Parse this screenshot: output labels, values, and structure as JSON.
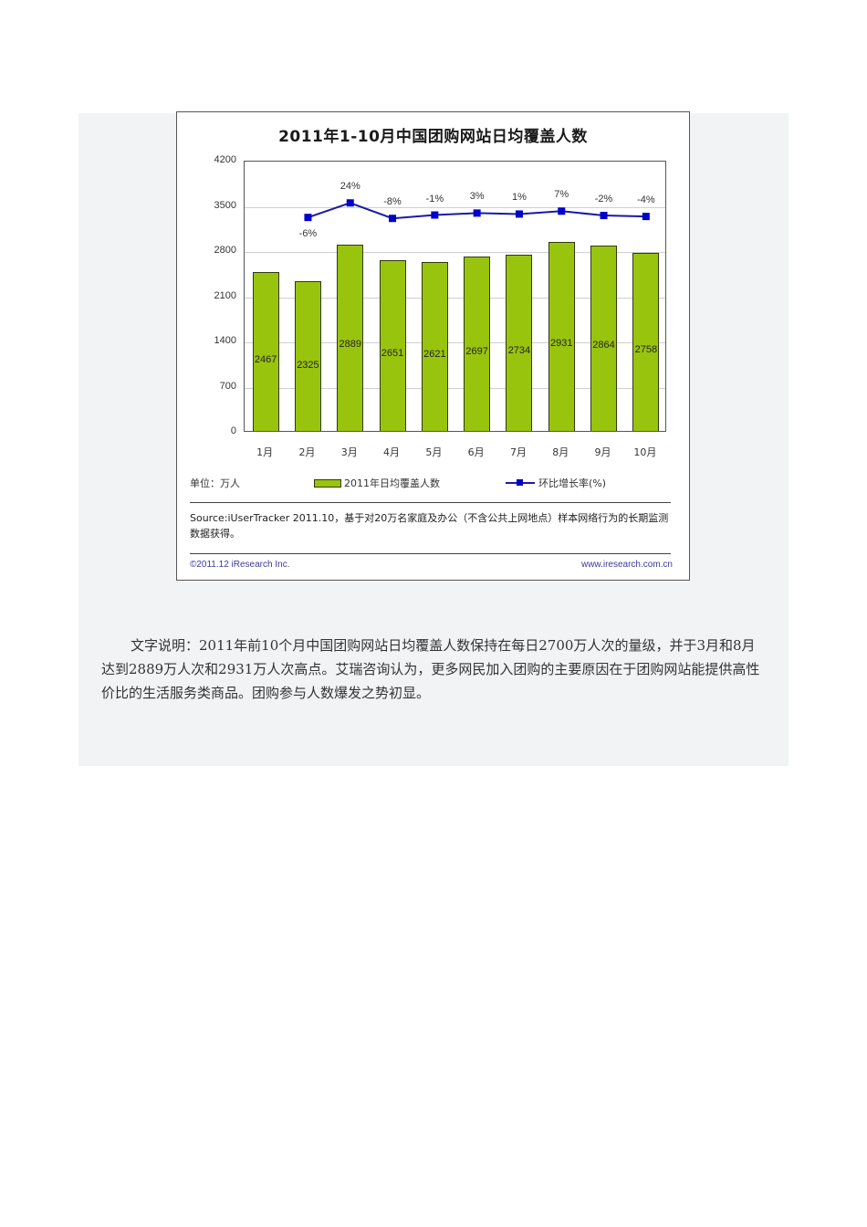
{
  "figure": {
    "title": "2011年1-10月中国团购网站日均覆盖人数",
    "unit_label": "单位：万人",
    "legend": {
      "bar_series": "2011年日均覆盖人数",
      "line_series": "环比增长率(%)"
    },
    "source_note": "Source:iUserTracker 2011.10，基于对20万名家庭及办公（不含公共上网地点）样本网络行为的长期监测数据获得。",
    "copyright": "©2011.12 iResearch Inc.",
    "website": "www.iresearch.com.cn",
    "colors": {
      "bar": "#99c40e",
      "bar_border": "#2f3a0a",
      "line": "#1a1aa6",
      "marker": "#0000cc",
      "panel_bg": "#f2f3f5"
    }
  },
  "chart_data": {
    "type": "bar",
    "title": "2011年1-10月中国团购网站日均覆盖人数",
    "xlabel": "",
    "ylabel": "万人",
    "ylim": [
      0,
      4200
    ],
    "yticks": [
      0,
      700,
      1400,
      2100,
      2800,
      3500,
      4200
    ],
    "grid": true,
    "legend_position": "bottom",
    "categories": [
      "1月",
      "2月",
      "3月",
      "4月",
      "5月",
      "6月",
      "7月",
      "8月",
      "9月",
      "10月"
    ],
    "series": [
      {
        "name": "2011年日均覆盖人数",
        "type": "bar",
        "values": [
          2467,
          2325,
          2889,
          2651,
          2621,
          2697,
          2734,
          2931,
          2864,
          2758
        ]
      },
      {
        "name": "环比增长率(%)",
        "type": "line",
        "values": [
          null,
          -6,
          24,
          -8,
          -1,
          3,
          1,
          7,
          -2,
          -4
        ],
        "labels": [
          "",
          "-6%",
          "24%",
          "-8%",
          "-1%",
          "3%",
          "1%",
          "7%",
          "-2%",
          "-4%"
        ]
      }
    ],
    "annotations": [
      "单位：万人"
    ]
  },
  "description": {
    "text": "文字说明：2011年前10个月中国团购网站日均覆盖人数保持在每日2700万人次的量级，并于3月和8月达到2889万人次和2931万人次高点。艾瑞咨询认为，更多网民加入团购的主要原因在于团购网站能提供高性价比的生活服务类商品。团购参与人数爆发之势初显。"
  }
}
